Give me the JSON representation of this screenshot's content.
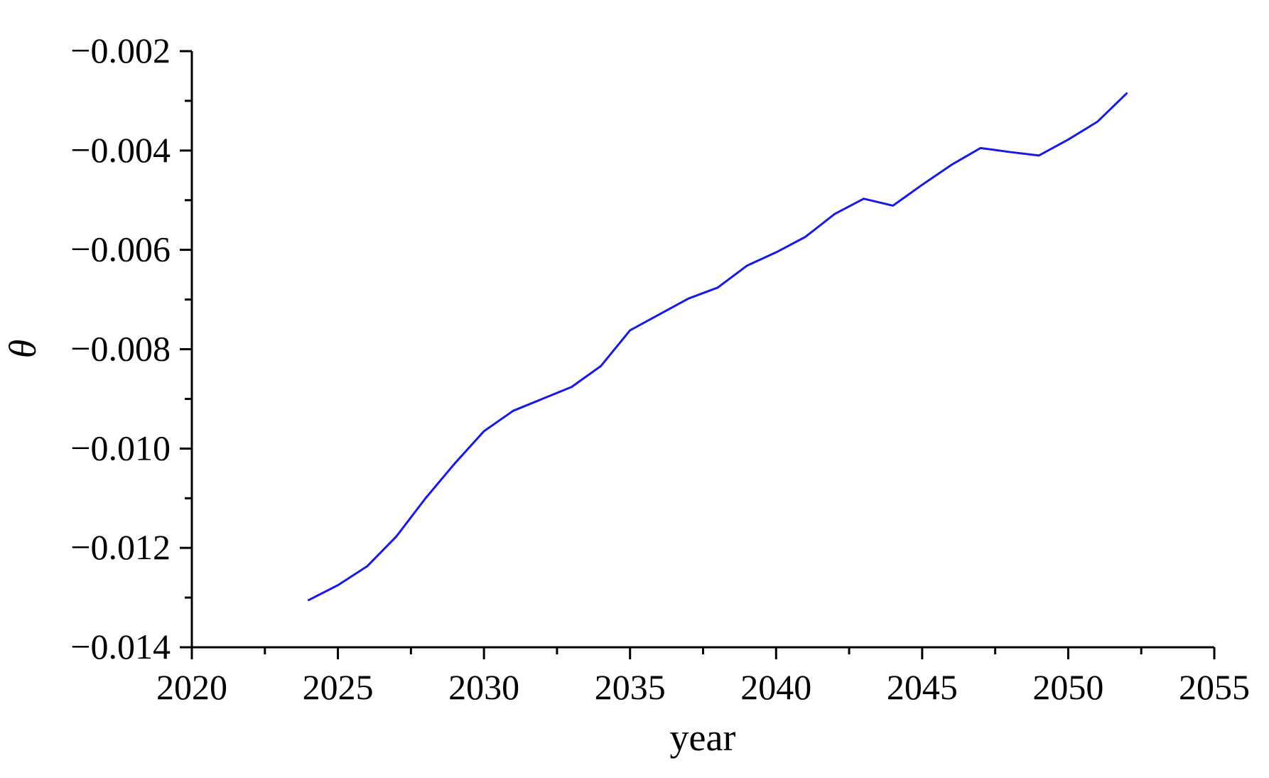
{
  "figure": {
    "description": "Line chart of theta versus year",
    "background": "#ffffff"
  },
  "chart_data": {
    "type": "line",
    "title": "",
    "xlabel": "year",
    "ylabel": "θ",
    "grid": false,
    "legend": "none",
    "xlim": [
      2020,
      2055
    ],
    "ylim": [
      -0.014,
      -0.002
    ],
    "x_ticks": {
      "values": [
        2020,
        2025,
        2030,
        2035,
        2040,
        2045,
        2050,
        2055
      ],
      "labels": [
        "2020",
        "2025",
        "2030",
        "2035",
        "2040",
        "2045",
        "2050",
        "2055"
      ]
    },
    "y_ticks": {
      "values": [
        -0.002,
        -0.004,
        -0.006,
        -0.008,
        -0.01,
        -0.012,
        -0.014
      ],
      "labels": [
        "−0.002",
        "−0.004",
        "−0.006",
        "−0.008",
        "−0.010",
        "−0.012",
        "−0.014"
      ]
    },
    "x_minor_ticks": [
      2022.5,
      2027.5,
      2032.5,
      2037.5,
      2042.5,
      2047.5,
      2052.5
    ],
    "y_minor_ticks": [
      -0.003,
      -0.005,
      -0.007,
      -0.009,
      -0.011,
      -0.013
    ],
    "series": [
      {
        "name": "theta",
        "color": "#1919e6",
        "x": [
          2024,
          2025,
          2026,
          2027,
          2028,
          2029,
          2030,
          2031,
          2032,
          2033,
          2034,
          2035,
          2036,
          2037,
          2038,
          2039,
          2040,
          2041,
          2042,
          2043,
          2044,
          2045,
          2046,
          2047,
          2048,
          2049,
          2050,
          2051,
          2052
        ],
        "y": [
          -0.01305,
          -0.01275,
          -0.01237,
          -0.01177,
          -0.011,
          -0.0103,
          -0.00965,
          -0.00924,
          -0.009,
          -0.00876,
          -0.00834,
          -0.00762,
          -0.0073,
          -0.00698,
          -0.00676,
          -0.00632,
          -0.00605,
          -0.00574,
          -0.00528,
          -0.00497,
          -0.00511,
          -0.00469,
          -0.00429,
          -0.00395,
          -0.00403,
          -0.0041,
          -0.00378,
          -0.00342,
          -0.00285
        ]
      }
    ],
    "colors": {
      "line": "#1919e6",
      "axis": "#000000",
      "text": "#000000",
      "background": "#ffffff"
    }
  }
}
